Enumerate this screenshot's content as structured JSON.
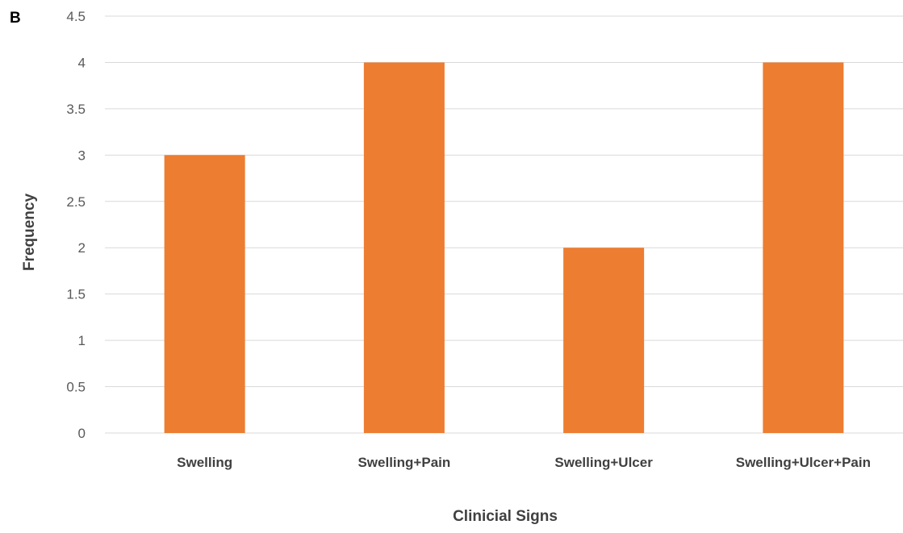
{
  "panel_label": "B",
  "chart_data": {
    "type": "bar",
    "categories": [
      "Swelling",
      "Swelling+Pain",
      "Swelling+Ulcer",
      "Swelling+Ulcer+Pain"
    ],
    "values": [
      3,
      4,
      2,
      4
    ],
    "xlabel": "Clinicial Signs",
    "ylabel": "Frequency",
    "ylim": [
      0,
      4.5
    ],
    "yticks": [
      "0",
      "0.5",
      "1",
      "1.5",
      "2",
      "2.5",
      "3",
      "3.5",
      "4",
      "4.5"
    ],
    "grid": true,
    "legend": false,
    "bar_color": "#ED7D31",
    "grid_color": "#D9D9D9"
  }
}
